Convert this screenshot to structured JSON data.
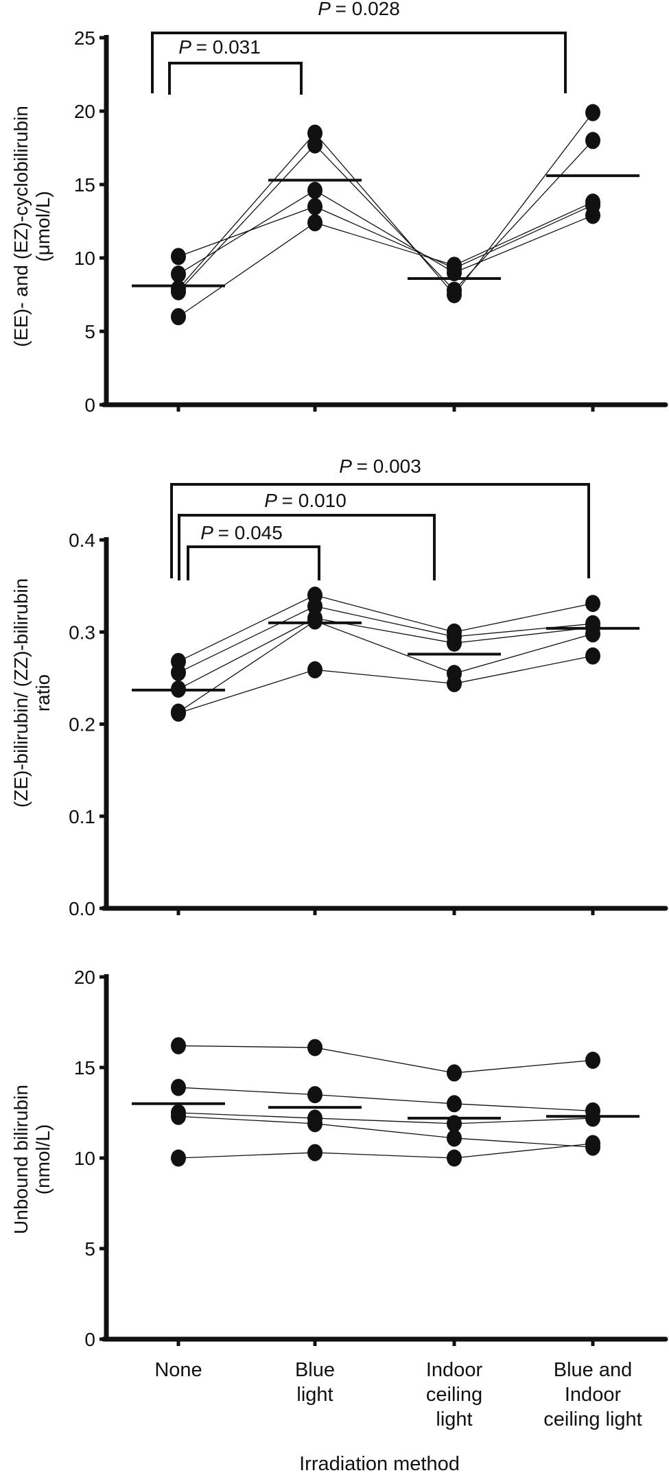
{
  "colors": {
    "ink": "#111111",
    "background": "#ffffff"
  },
  "categories": [
    "None",
    "Blue light",
    "Indoor ceiling light",
    "Blue and Indoor ceiling light"
  ],
  "category_lines": [
    [
      "None"
    ],
    [
      "Blue",
      "light"
    ],
    [
      "Indoor",
      "ceiling",
      "light"
    ],
    [
      "Blue and",
      "Indoor",
      "ceiling light"
    ]
  ],
  "xlabel": "Irradiation method",
  "chart_data": [
    {
      "type": "scatter",
      "ylabel_lines": [
        "(EE)- and (EZ)-cyclobilirubin",
        "(μmol/L)"
      ],
      "ylim": [
        0,
        25
      ],
      "yticks": [
        0,
        5,
        10,
        15,
        20,
        25
      ],
      "ytick_labels": [
        "0",
        "5",
        "10",
        "15",
        "20",
        "25"
      ],
      "grid": false,
      "subjects": [
        [
          10.1,
          13.5,
          9.3,
          13.6
        ],
        [
          8.9,
          14.6,
          9.0,
          12.9
        ],
        [
          7.9,
          18.5,
          7.5,
          19.9
        ],
        [
          7.7,
          17.7,
          7.8,
          18.0
        ],
        [
          6.0,
          12.4,
          9.5,
          13.8
        ]
      ],
      "means": [
        8.1,
        15.3,
        8.6,
        15.6
      ],
      "comparisons": [
        {
          "from": 0,
          "to": 3,
          "label": "= 0.028"
        },
        {
          "from": 0,
          "to": 1,
          "label": "= 0.031"
        }
      ]
    },
    {
      "type": "scatter",
      "ylabel_lines": [
        "(ZE)-bilirubin/ (ZZ)-bilirubin",
        "ratio"
      ],
      "ylim": [
        0,
        0.4
      ],
      "yticks": [
        0,
        0.1,
        0.2,
        0.3,
        0.4
      ],
      "ytick_labels": [
        "0.0",
        "0.1",
        "0.2",
        "0.3",
        "0.4"
      ],
      "grid": false,
      "subjects": [
        [
          0.268,
          0.34,
          0.3,
          0.331
        ],
        [
          0.256,
          0.328,
          0.295,
          0.309
        ],
        [
          0.238,
          0.315,
          0.288,
          0.305
        ],
        [
          0.213,
          0.312,
          0.255,
          0.298
        ],
        [
          0.212,
          0.259,
          0.244,
          0.274
        ]
      ],
      "means": [
        0.237,
        0.31,
        0.276,
        0.304
      ],
      "comparisons": [
        {
          "from": 0,
          "to": 3,
          "label": "= 0.003"
        },
        {
          "from": 0,
          "to": 2,
          "label": "= 0.010"
        },
        {
          "from": 0,
          "to": 1,
          "label": "= 0.045"
        }
      ]
    },
    {
      "type": "scatter",
      "ylabel_lines": [
        "Unbound bilirubin",
        "(nmol/L)"
      ],
      "ylim": [
        0,
        20
      ],
      "yticks": [
        0,
        5,
        10,
        15,
        20
      ],
      "ytick_labels": [
        "0",
        "5",
        "10",
        "15",
        "20"
      ],
      "grid": false,
      "subjects": [
        [
          16.2,
          16.1,
          14.7,
          15.4
        ],
        [
          13.9,
          13.5,
          13.0,
          12.6
        ],
        [
          12.5,
          12.2,
          11.9,
          12.2
        ],
        [
          12.3,
          11.9,
          11.1,
          10.6
        ],
        [
          10.0,
          10.3,
          10.0,
          10.8
        ]
      ],
      "means": [
        13.0,
        12.8,
        12.2,
        12.3
      ],
      "comparisons": []
    }
  ],
  "p_symbol": "P"
}
